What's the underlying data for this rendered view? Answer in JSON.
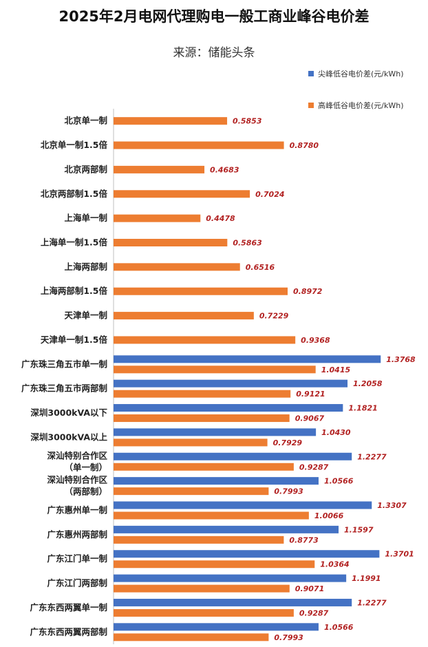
{
  "title": "2025年2月电网代理购电一般工商业峰谷电价差",
  "subtitle": "来源：储能头条",
  "colors": {
    "peak": "#4472C4",
    "high": "#ED7D31",
    "label": "#B22222"
  },
  "chart_data": {
    "type": "bar",
    "orientation": "horizontal",
    "legend_position": "top-right",
    "grid": false,
    "xlim": [
      0,
      1.45
    ],
    "series": [
      {
        "name": "尖峰低谷电价差(元/kWh)",
        "key": "peak"
      },
      {
        "name": "高峰低谷电价差(元/kWh)",
        "key": "high"
      }
    ],
    "categories": [
      {
        "label": [
          "北京单一制"
        ],
        "peak": null,
        "high": 0.5853
      },
      {
        "label": [
          "北京单一制1.5倍"
        ],
        "peak": null,
        "high": 0.878
      },
      {
        "label": [
          "北京两部制"
        ],
        "peak": null,
        "high": 0.4683
      },
      {
        "label": [
          "北京两部制1.5倍"
        ],
        "peak": null,
        "high": 0.7024
      },
      {
        "label": [
          "上海单一制"
        ],
        "peak": null,
        "high": 0.4478
      },
      {
        "label": [
          "上海单一制1.5倍"
        ],
        "peak": null,
        "high": 0.5863
      },
      {
        "label": [
          "上海两部制"
        ],
        "peak": null,
        "high": 0.6516
      },
      {
        "label": [
          "上海两部制1.5倍"
        ],
        "peak": null,
        "high": 0.8972
      },
      {
        "label": [
          "天津单一制"
        ],
        "peak": null,
        "high": 0.7229
      },
      {
        "label": [
          "天津单一制1.5倍"
        ],
        "peak": null,
        "high": 0.9368
      },
      {
        "label": [
          "广东珠三角五市单一制"
        ],
        "peak": 1.3768,
        "high": 1.0415
      },
      {
        "label": [
          "广东珠三角五市两部制"
        ],
        "peak": 1.2058,
        "high": 0.9121
      },
      {
        "label": [
          "深圳3000kVA以下"
        ],
        "peak": 1.1821,
        "high": 0.9067
      },
      {
        "label": [
          "深圳3000kVA以上"
        ],
        "peak": 1.043,
        "high": 0.7929
      },
      {
        "label": [
          "深汕特别合作区",
          "（单一制）"
        ],
        "peak": 1.2277,
        "high": 0.9287
      },
      {
        "label": [
          "深汕特别合作区",
          "（两部制）"
        ],
        "peak": 1.0566,
        "high": 0.7993
      },
      {
        "label": [
          "广东惠州单一制"
        ],
        "peak": 1.3307,
        "high": 1.0066
      },
      {
        "label": [
          "广东惠州两部制"
        ],
        "peak": 1.1597,
        "high": 0.8773
      },
      {
        "label": [
          "广东江门单一制"
        ],
        "peak": 1.3701,
        "high": 1.0364
      },
      {
        "label": [
          "广东江门两部制"
        ],
        "peak": 1.1991,
        "high": 0.9071
      },
      {
        "label": [
          "广东东西两翼单一制"
        ],
        "peak": 1.2277,
        "high": 0.9287
      },
      {
        "label": [
          "广东东西两翼两部制"
        ],
        "peak": 1.0566,
        "high": 0.7993
      }
    ]
  }
}
